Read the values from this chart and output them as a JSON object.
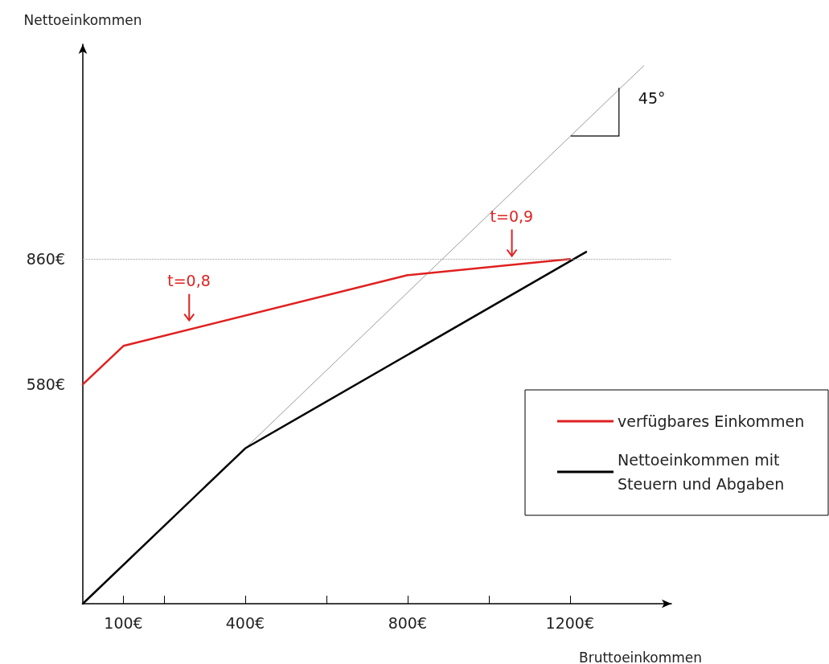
{
  "chart_data": {
    "type": "line",
    "xlabel": "Bruttoeinkommen",
    "ylabel": "Nettoeinkommen",
    "xlim": [
      0,
      1450
    ],
    "ylim": [
      90,
      1340
    ],
    "xticks": [
      {
        "value": 100,
        "label": "100€"
      },
      {
        "value": 200,
        "label": null
      },
      {
        "value": 400,
        "label": "400€"
      },
      {
        "value": 600,
        "label": null
      },
      {
        "value": 800,
        "label": "800€"
      },
      {
        "value": 1000,
        "label": null
      },
      {
        "value": 1200,
        "label": "1200€"
      }
    ],
    "yticks": [
      {
        "value": 580,
        "label": "580€"
      },
      {
        "value": 860,
        "label": "860€"
      }
    ],
    "series": [
      {
        "name": "verfügbares Einkommen",
        "color": "#e02020",
        "x": [
          0,
          100,
          800,
          1200
        ],
        "values": [
          580,
          666,
          824,
          860
        ]
      },
      {
        "name": "Nettoeinkommen mit Steuern und Abgaben",
        "color": "#000000",
        "x": [
          0,
          400,
          1240
        ],
        "values": [
          90,
          437,
          876
        ]
      },
      {
        "color": "#9a9a9a",
        "x": [
          400,
          1382
        ],
        "values": [
          437,
          1292
        ]
      }
    ],
    "ref_lines": [
      {
        "axis": "y",
        "value": 860,
        "color": "#9a9a9a",
        "line_style": "dotted"
      }
    ],
    "annotations": [
      {
        "text": "t=0,8",
        "x": 262,
        "y": 703
      },
      {
        "text": "t=0,9",
        "x": 1057,
        "y": 847
      },
      {
        "text": "45°",
        "x": 1202,
        "y": 1135
      }
    ],
    "legend": "right",
    "grid": false,
    "marker": "none",
    "line_style": "solid"
  }
}
